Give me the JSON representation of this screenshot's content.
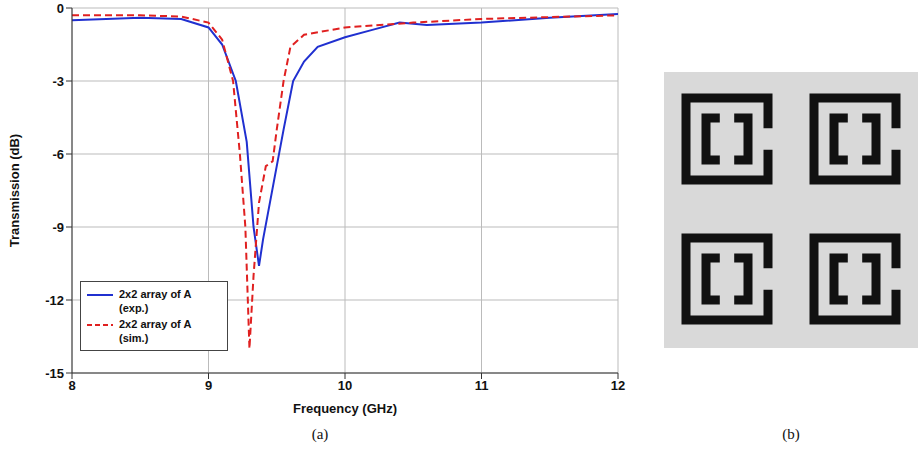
{
  "chart_data": {
    "type": "line",
    "x_label": "Frequency (GHz)",
    "y_label": "Transmission (dB)",
    "xlim": [
      8,
      12
    ],
    "xticks": [
      8,
      9,
      10,
      11,
      12
    ],
    "ylim": [
      -15,
      0
    ],
    "yticks": [
      -15,
      -12,
      -9,
      -6,
      -3,
      0
    ],
    "grid": true,
    "legend": "lower left",
    "series": [
      {
        "name": "2x2 array of A (exp.)",
        "color": "#2030d0",
        "line_style": "solid",
        "x": [
          8,
          8.5,
          8.8,
          9.0,
          9.1,
          9.2,
          9.28,
          9.33,
          9.37,
          9.4,
          9.45,
          9.5,
          9.55,
          9.62,
          9.7,
          9.8,
          10.0,
          10.2,
          10.4,
          10.6,
          11,
          11.5,
          12
        ],
        "values": [
          -0.5,
          -0.4,
          -0.45,
          -0.8,
          -1.5,
          -3,
          -5.5,
          -9,
          -10.6,
          -9.5,
          -8,
          -6.5,
          -5,
          -3,
          -2.2,
          -1.6,
          -1.2,
          -0.9,
          -0.6,
          -0.7,
          -0.6,
          -0.4,
          -0.25
        ]
      },
      {
        "name": "2x2 array of A (sim.)",
        "color": "#e02020",
        "line_style": "dashed",
        "x": [
          8,
          8.5,
          8.8,
          9.0,
          9.1,
          9.18,
          9.23,
          9.27,
          9.3,
          9.33,
          9.37,
          9.42,
          9.47,
          9.5,
          9.55,
          9.6,
          9.7,
          10.0,
          10.5,
          11,
          12
        ],
        "values": [
          -0.3,
          -0.3,
          -0.35,
          -0.6,
          -1.3,
          -3,
          -6,
          -9,
          -14,
          -11,
          -8,
          -6.5,
          -6.3,
          -5,
          -3,
          -1.6,
          -1.1,
          -0.8,
          -0.6,
          -0.45,
          -0.3
        ]
      }
    ]
  },
  "panels": [
    "(a)",
    "(b)"
  ]
}
